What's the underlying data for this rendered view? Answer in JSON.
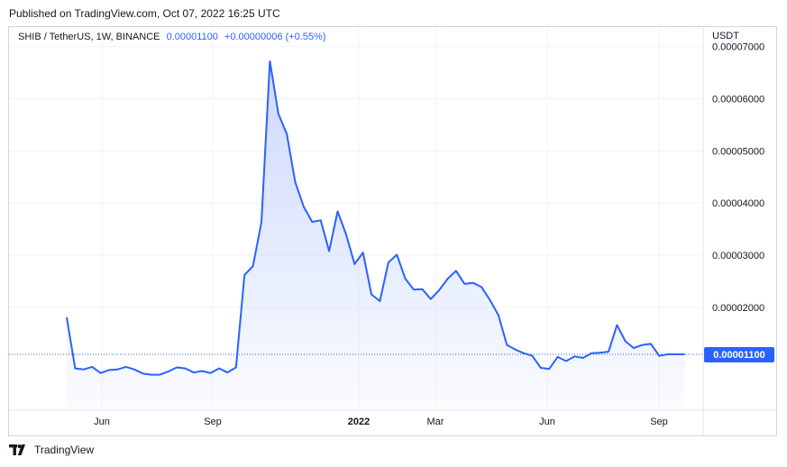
{
  "header": {
    "published": "Published on TradingView.com, Oct 07, 2022 16:25 UTC"
  },
  "legend": {
    "symbol": "SHIB / TetherUS, 1W, BINANCE",
    "price": "0.00001100",
    "change": "+0.00000006 (+0.55%)"
  },
  "axis": {
    "currency": "USDT",
    "y_ticks": [
      "0.00007000",
      "0.00006000",
      "0.00005000",
      "0.00004000",
      "0.00003000",
      "0.00002000"
    ],
    "x_ticks": [
      "Jun",
      "Sep",
      "2022",
      "Mar",
      "Jun",
      "Sep"
    ]
  },
  "footer": {
    "brand": "TradingView"
  },
  "colors": {
    "line": "#2962ff",
    "fill_top": "#c8d5fb",
    "grid": "#f0f3fa",
    "badge": "#2962ff"
  },
  "chart_data": {
    "type": "area",
    "y_ticks": [
      7e-05,
      6e-05,
      5e-05,
      4e-05,
      3e-05,
      2e-05
    ],
    "ylim": [
      0.0,
      7.2e-05
    ],
    "x_tick_labels": [
      "Jun",
      "Sep",
      "2022",
      "Mar",
      "Jun",
      "Sep"
    ],
    "last_price": 1.1e-05,
    "values": [
      1.81e-05,
      8.3e-06,
      8.1e-06,
      8.6e-06,
      7.4e-06,
      8e-06,
      8.1e-06,
      8.6e-06,
      8.1e-06,
      7.3e-06,
      7.1e-06,
      7.1e-06,
      7.7e-06,
      8.5e-06,
      8.3e-06,
      7.5e-06,
      7.8e-06,
      7.4e-06,
      8.3e-06,
      7.5e-06,
      8.5e-06,
      2.62e-05,
      2.79e-05,
      3.63e-05,
      6.72e-05,
      5.71e-05,
      5.33e-05,
      4.4e-05,
      3.93e-05,
      3.64e-05,
      3.67e-05,
      3.08e-05,
      3.84e-05,
      3.4e-05,
      2.83e-05,
      3.05e-05,
      2.25e-05,
      2.12e-05,
      2.86e-05,
      3.01e-05,
      2.55e-05,
      2.34e-05,
      2.35e-05,
      2.16e-05,
      2.33e-05,
      2.55e-05,
      2.7e-05,
      2.45e-05,
      2.47e-05,
      2.39e-05,
      2.14e-05,
      1.85e-05,
      1.28e-05,
      1.19e-05,
      1.12e-05,
      1.07e-05,
      8.4e-06,
      8.2e-06,
      1.05e-05,
      9.7e-06,
      1.06e-05,
      1.03e-05,
      1.12e-05,
      1.13e-05,
      1.15e-05,
      1.66e-05,
      1.35e-05,
      1.22e-05,
      1.28e-05,
      1.3e-05,
      1.07e-05,
      1.1e-05,
      1.1e-05,
      1.1e-05
    ]
  }
}
